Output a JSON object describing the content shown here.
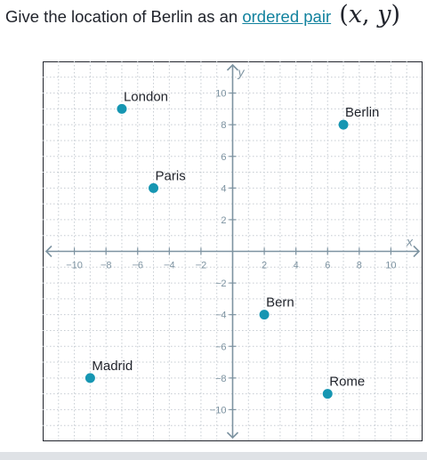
{
  "question": {
    "prefix": "Give the location of Berlin as an ",
    "link_text": "ordered pair",
    "math_open": "(",
    "math_x": "x",
    "math_comma": ", ",
    "math_y": "y",
    "math_close": ")"
  },
  "chart_data": {
    "type": "scatter",
    "xlabel": "x",
    "ylabel": "y",
    "xlim": [
      -12,
      12
    ],
    "ylim": [
      -12,
      12
    ],
    "grid": true,
    "x_ticks": [
      -10,
      -8,
      -6,
      -4,
      -2,
      2,
      4,
      6,
      8,
      10
    ],
    "y_ticks": [
      -10,
      -8,
      -6,
      -4,
      -2,
      2,
      4,
      6,
      8,
      10
    ],
    "point_color": "#1696b2",
    "axis_color": "#7d93a1",
    "points": [
      {
        "label": "London",
        "x": -7,
        "y": 9
      },
      {
        "label": "Berlin",
        "x": 7,
        "y": 8
      },
      {
        "label": "Paris",
        "x": -5,
        "y": 4
      },
      {
        "label": "Bern",
        "x": 2,
        "y": -4
      },
      {
        "label": "Madrid",
        "x": -9,
        "y": -8
      },
      {
        "label": "Rome",
        "x": 6,
        "y": -9
      }
    ]
  }
}
